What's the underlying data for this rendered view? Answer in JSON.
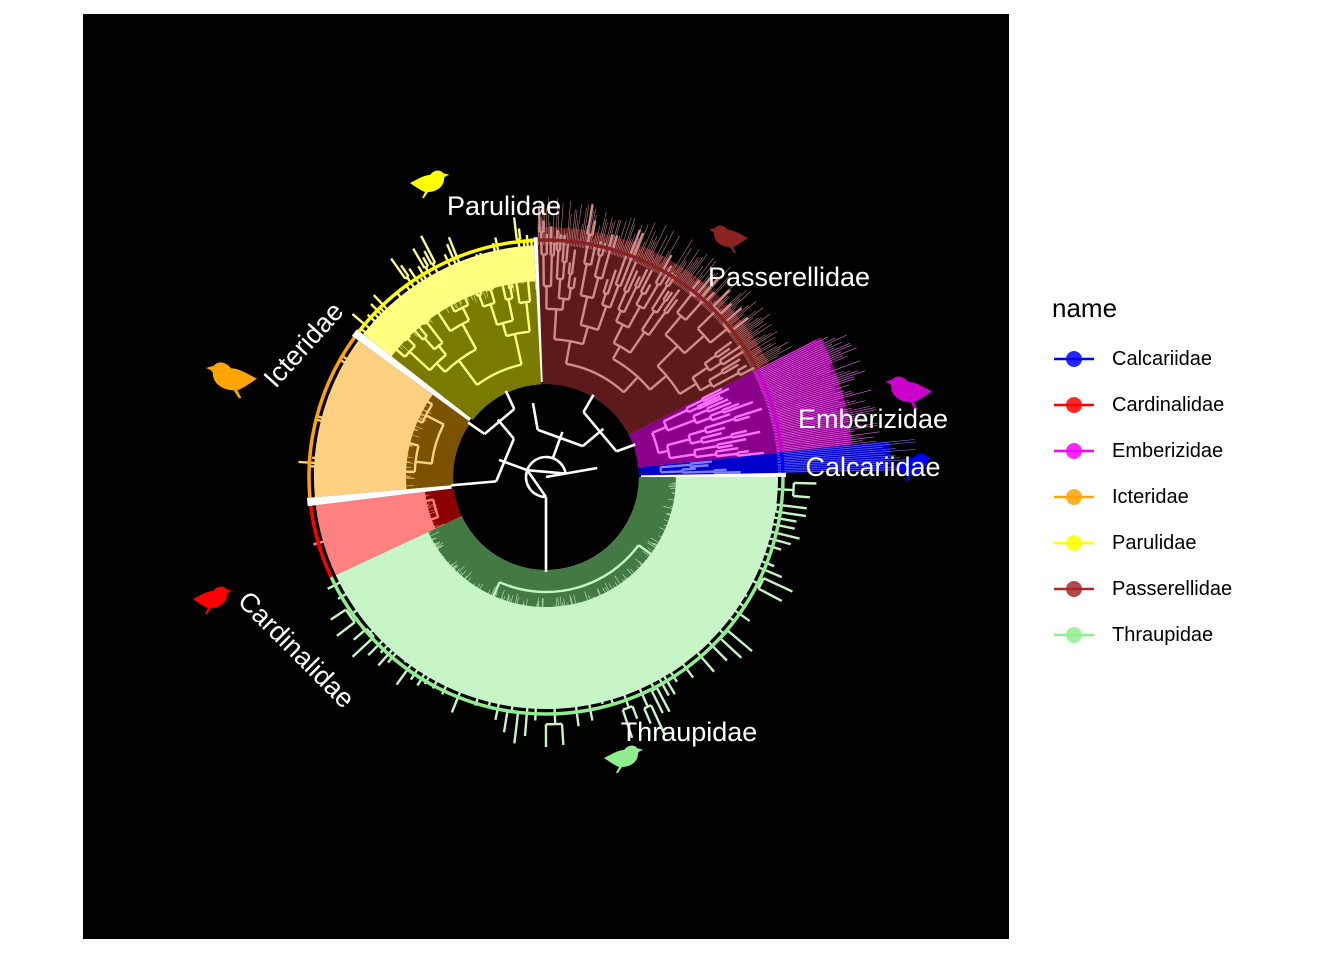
{
  "clades": [
    {
      "name": "Calcariidae",
      "label": "Calcariidae",
      "start": 354,
      "end": 359,
      "dark": "#0000cc",
      "light": "#8080ff",
      "arc": "#0000ff",
      "icon": "bird-silhouette-icon"
    },
    {
      "name": "Emberizidae",
      "label": "Emberizidae",
      "start": 333,
      "end": 354,
      "dark": "#8a008a",
      "light": "#ff70ff",
      "arc": "#cc00cc",
      "icon": "bird-silhouette-icon"
    },
    {
      "name": "Passerellidae",
      "label": "Passerellidae",
      "start": 268,
      "end": 333,
      "dark": "#5c1a1a",
      "light": "#d18b8b",
      "arc": "#8b2323",
      "icon": "bird-silhouette-icon"
    },
    {
      "name": "Parulidae",
      "label": "Parulidae",
      "start": 218,
      "end": 267,
      "dark": "#7a7a00",
      "light": "#ffff80",
      "arc": "#ffff00",
      "icon": "bird-silhouette-icon"
    },
    {
      "name": "Icteridae",
      "label": "Icteridae",
      "start": 175,
      "end": 216,
      "dark": "#7a5200",
      "light": "#ffd080",
      "arc": "#ffa500",
      "icon": "bird-silhouette-icon"
    },
    {
      "name": "Cardinalidae",
      "label": "Cardinalidae",
      "start": 155,
      "end": 173,
      "dark": "#8b0000",
      "light": "#ff8080",
      "arc": "#ff0000",
      "icon": "bird-silhouette-icon"
    },
    {
      "name": "Thraupidae",
      "label": "Thraupidae",
      "start": 0,
      "end": 155,
      "dark": "#437a43",
      "light": "#c8f5c8",
      "arc": "#90ee90",
      "icon": "bird-silhouette-icon"
    }
  ],
  "legend": {
    "title": "name",
    "items": [
      {
        "label": "Calcariidae",
        "color": "#0000ff"
      },
      {
        "label": "Cardinalidae",
        "color": "#ff0000"
      },
      {
        "label": "Emberizidae",
        "color": "#ff00ff"
      },
      {
        "label": "Icteridae",
        "color": "#ffa500"
      },
      {
        "label": "Parulidae",
        "color": "#ffff00"
      },
      {
        "label": "Passerellidae",
        "color": "#a52a2a"
      },
      {
        "label": "Thraupidae",
        "color": "#90ee90"
      }
    ]
  }
}
